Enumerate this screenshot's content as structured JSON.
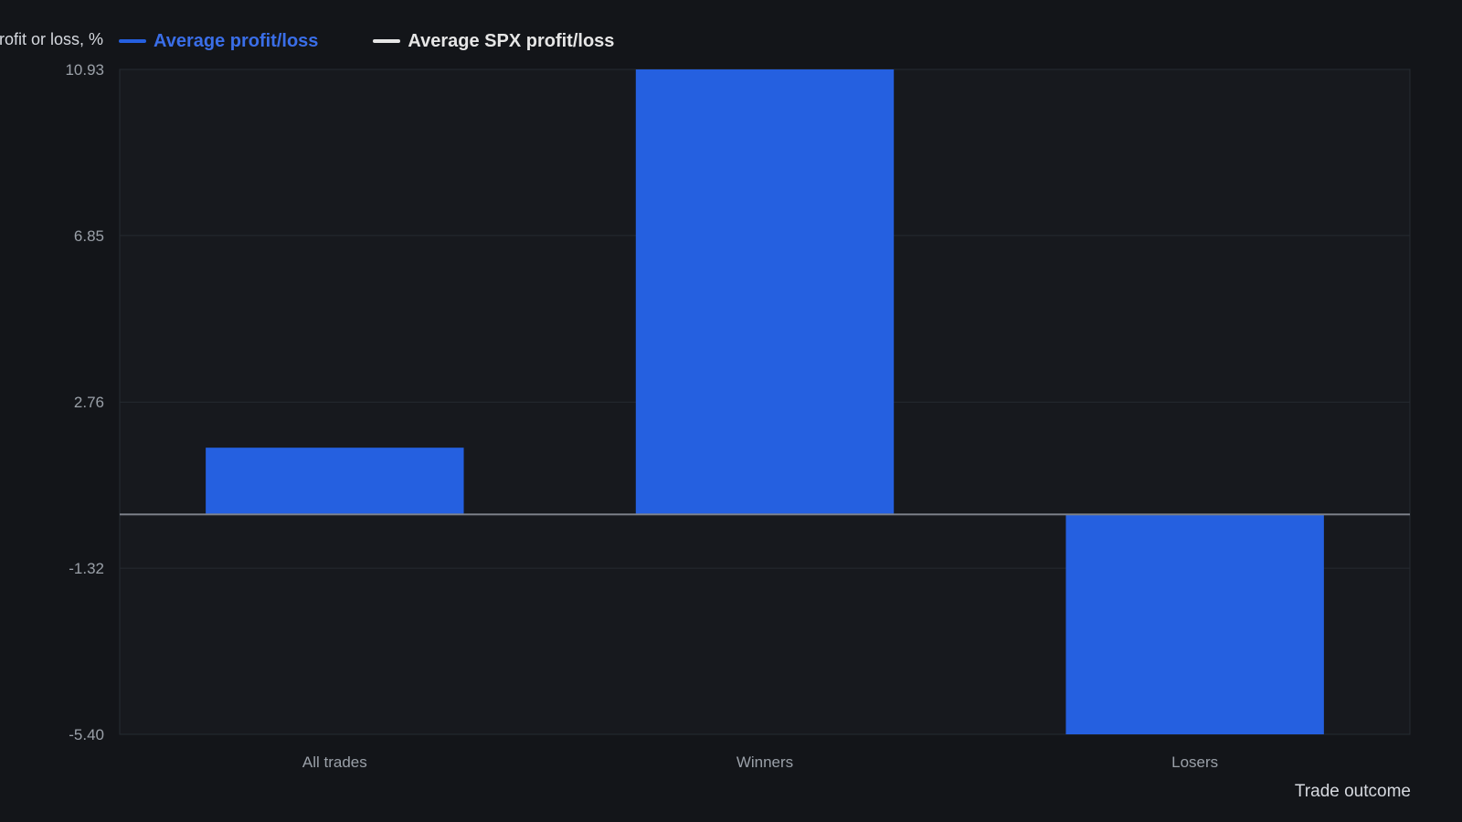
{
  "colors": {
    "background": "#131519",
    "plot_background": "#17191e",
    "bar": "#2560e0",
    "spx": "#e6e6e6",
    "grid": "#262a31",
    "zero_line": "#7b8089",
    "legend_primary_text": "#3a6ee8",
    "legend_secondary_text": "#e6e6e6"
  },
  "chart_data": {
    "type": "bar",
    "title": "",
    "xlabel": "Trade outcome",
    "ylabel": "Profit or loss, %",
    "categories": [
      "All trades",
      "Winners",
      "Losers"
    ],
    "series": [
      {
        "name": "Average profit/loss",
        "values": [
          1.64,
          10.93,
          -5.4
        ]
      },
      {
        "name": "Average SPX profit/loss",
        "values": [
          0,
          0,
          0
        ]
      }
    ],
    "y_ticks": [
      "10.93",
      "6.85",
      "2.76",
      "-1.32",
      "-5.40"
    ],
    "y_tick_values": [
      10.93,
      6.85,
      2.76,
      -1.32,
      -5.4
    ],
    "ylim": [
      -5.4,
      10.93
    ],
    "grid": true,
    "legend_position": "top-left"
  }
}
